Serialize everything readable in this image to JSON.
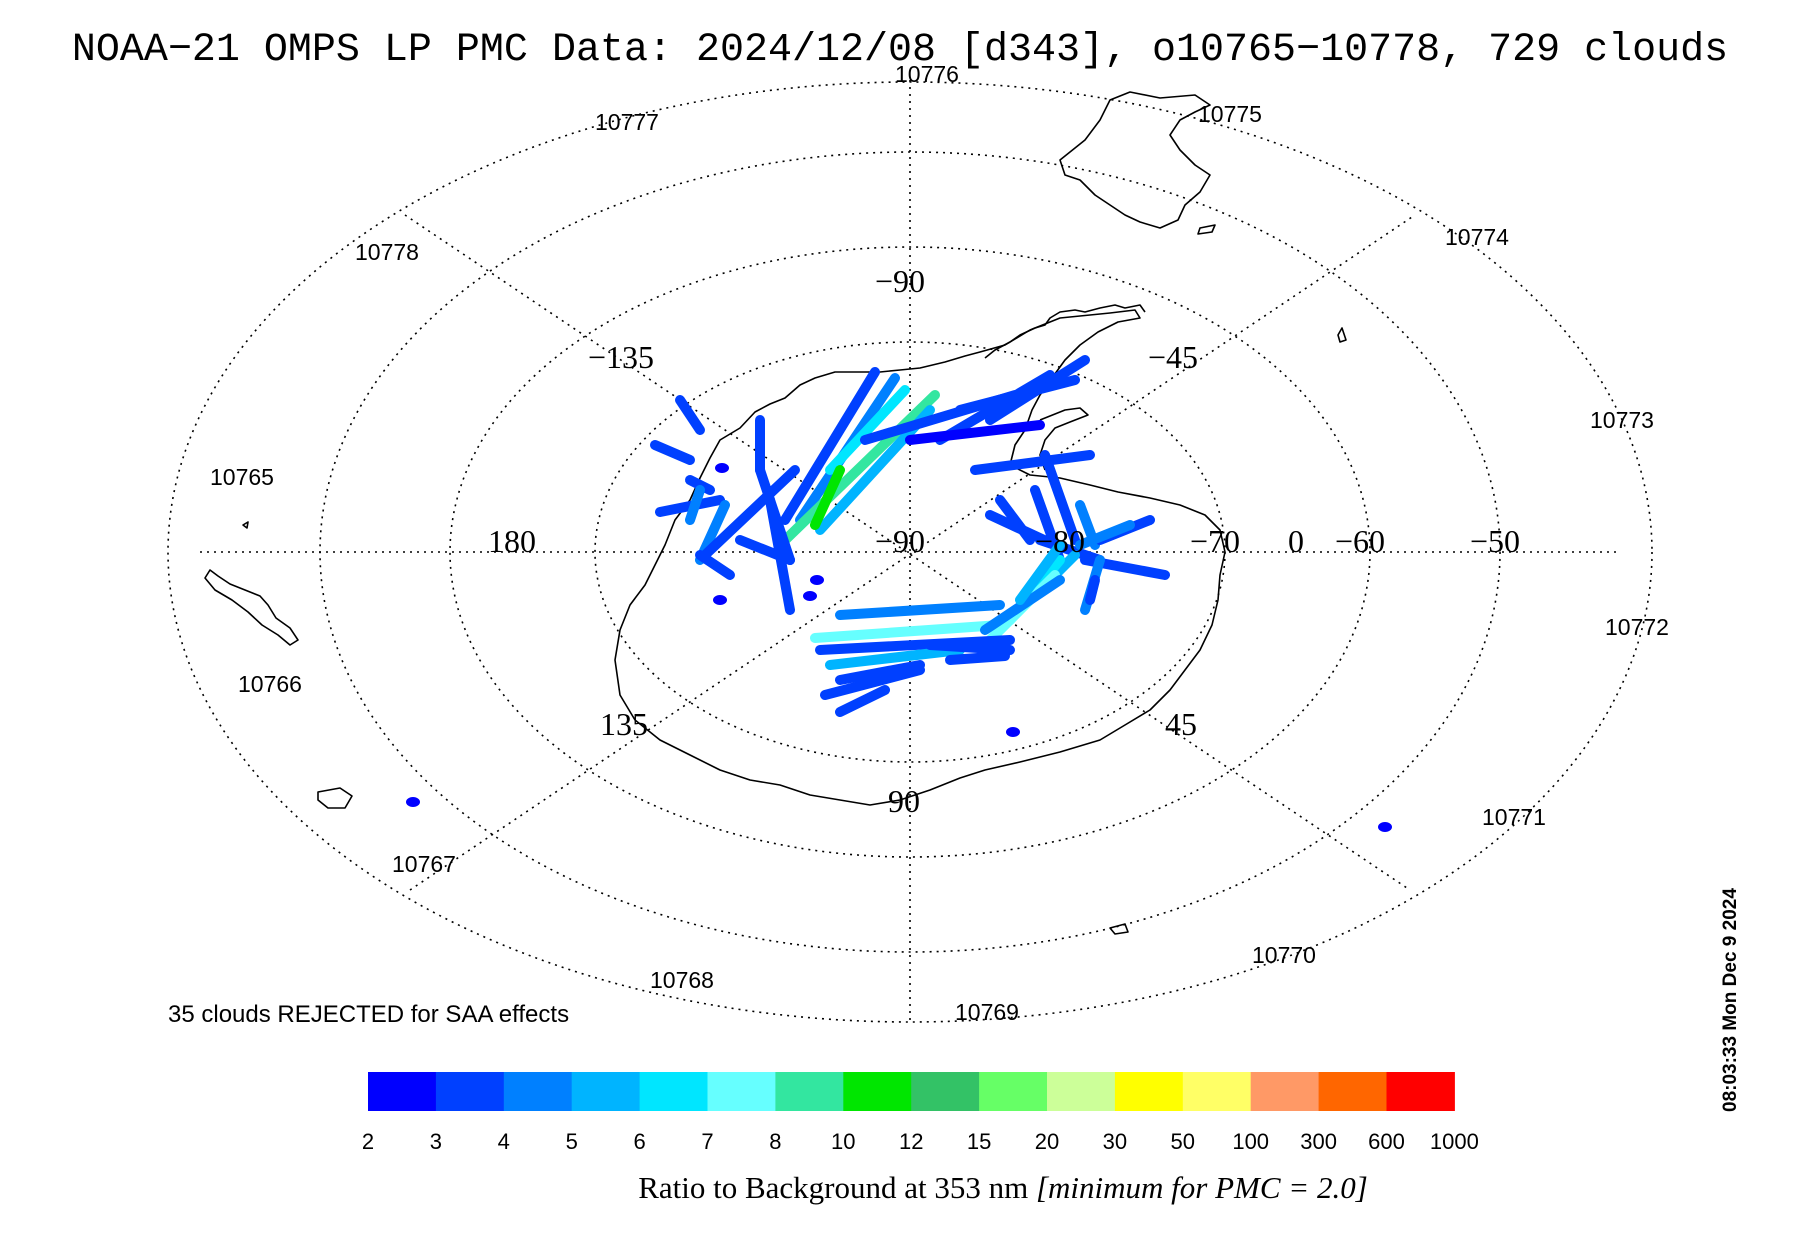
{
  "title": "NOAA−21 OMPS LP PMC Data: 2024/12/08 [d343], o10765−10778, 729 clouds",
  "orbits": [
    {
      "label": "10776",
      "side": "top"
    },
    {
      "label": "10775",
      "side": "top-right"
    },
    {
      "label": "10777",
      "side": "top-left"
    },
    {
      "label": "10774",
      "side": "right"
    },
    {
      "label": "10778",
      "side": "left"
    },
    {
      "label": "10773",
      "side": "right"
    },
    {
      "label": "10765",
      "side": "left"
    },
    {
      "label": "10772",
      "side": "right"
    },
    {
      "label": "10766",
      "side": "left"
    },
    {
      "label": "10771",
      "side": "right"
    },
    {
      "label": "10767",
      "side": "left"
    },
    {
      "label": "10770",
      "side": "bottom-right"
    },
    {
      "label": "10768",
      "side": "bottom-left"
    },
    {
      "label": "10769",
      "side": "bottom"
    }
  ],
  "longitude_labels": [
    "−90",
    "−135",
    "−45",
    "180",
    "−90",
    "0",
    "135",
    "45",
    "90"
  ],
  "latitude_labels": [
    "−80",
    "−70",
    "−60",
    "−50"
  ],
  "rejected_note": "35 clouds REJECTED for SAA effects",
  "timestamp": "08:03:33 Mon Dec  9 2024",
  "colorbar": {
    "bins": [
      {
        "label": "2",
        "color": "#0000ff"
      },
      {
        "label": "3",
        "color": "#0040ff"
      },
      {
        "label": "4",
        "color": "#0080ff"
      },
      {
        "label": "5",
        "color": "#00b4ff"
      },
      {
        "label": "6",
        "color": "#00e6ff"
      },
      {
        "label": "7",
        "color": "#66ffff"
      },
      {
        "label": "8",
        "color": "#33e6a0"
      },
      {
        "label": "10",
        "color": "#00e600"
      },
      {
        "label": "12",
        "color": "#33c266"
      },
      {
        "label": "15",
        "color": "#66ff66"
      },
      {
        "label": "20",
        "color": "#ccff99"
      },
      {
        "label": "30",
        "color": "#ffff00"
      },
      {
        "label": "50",
        "color": "#ffff66"
      },
      {
        "label": "100",
        "color": "#ff9966"
      },
      {
        "label": "300",
        "color": "#ff6600"
      },
      {
        "label": "600",
        "color": "#ff0000"
      }
    ],
    "end_label": "1000",
    "caption_main": "Ratio to Background at 353 nm ",
    "caption_italic": "[minimum for PMC = 2.0]"
  }
}
